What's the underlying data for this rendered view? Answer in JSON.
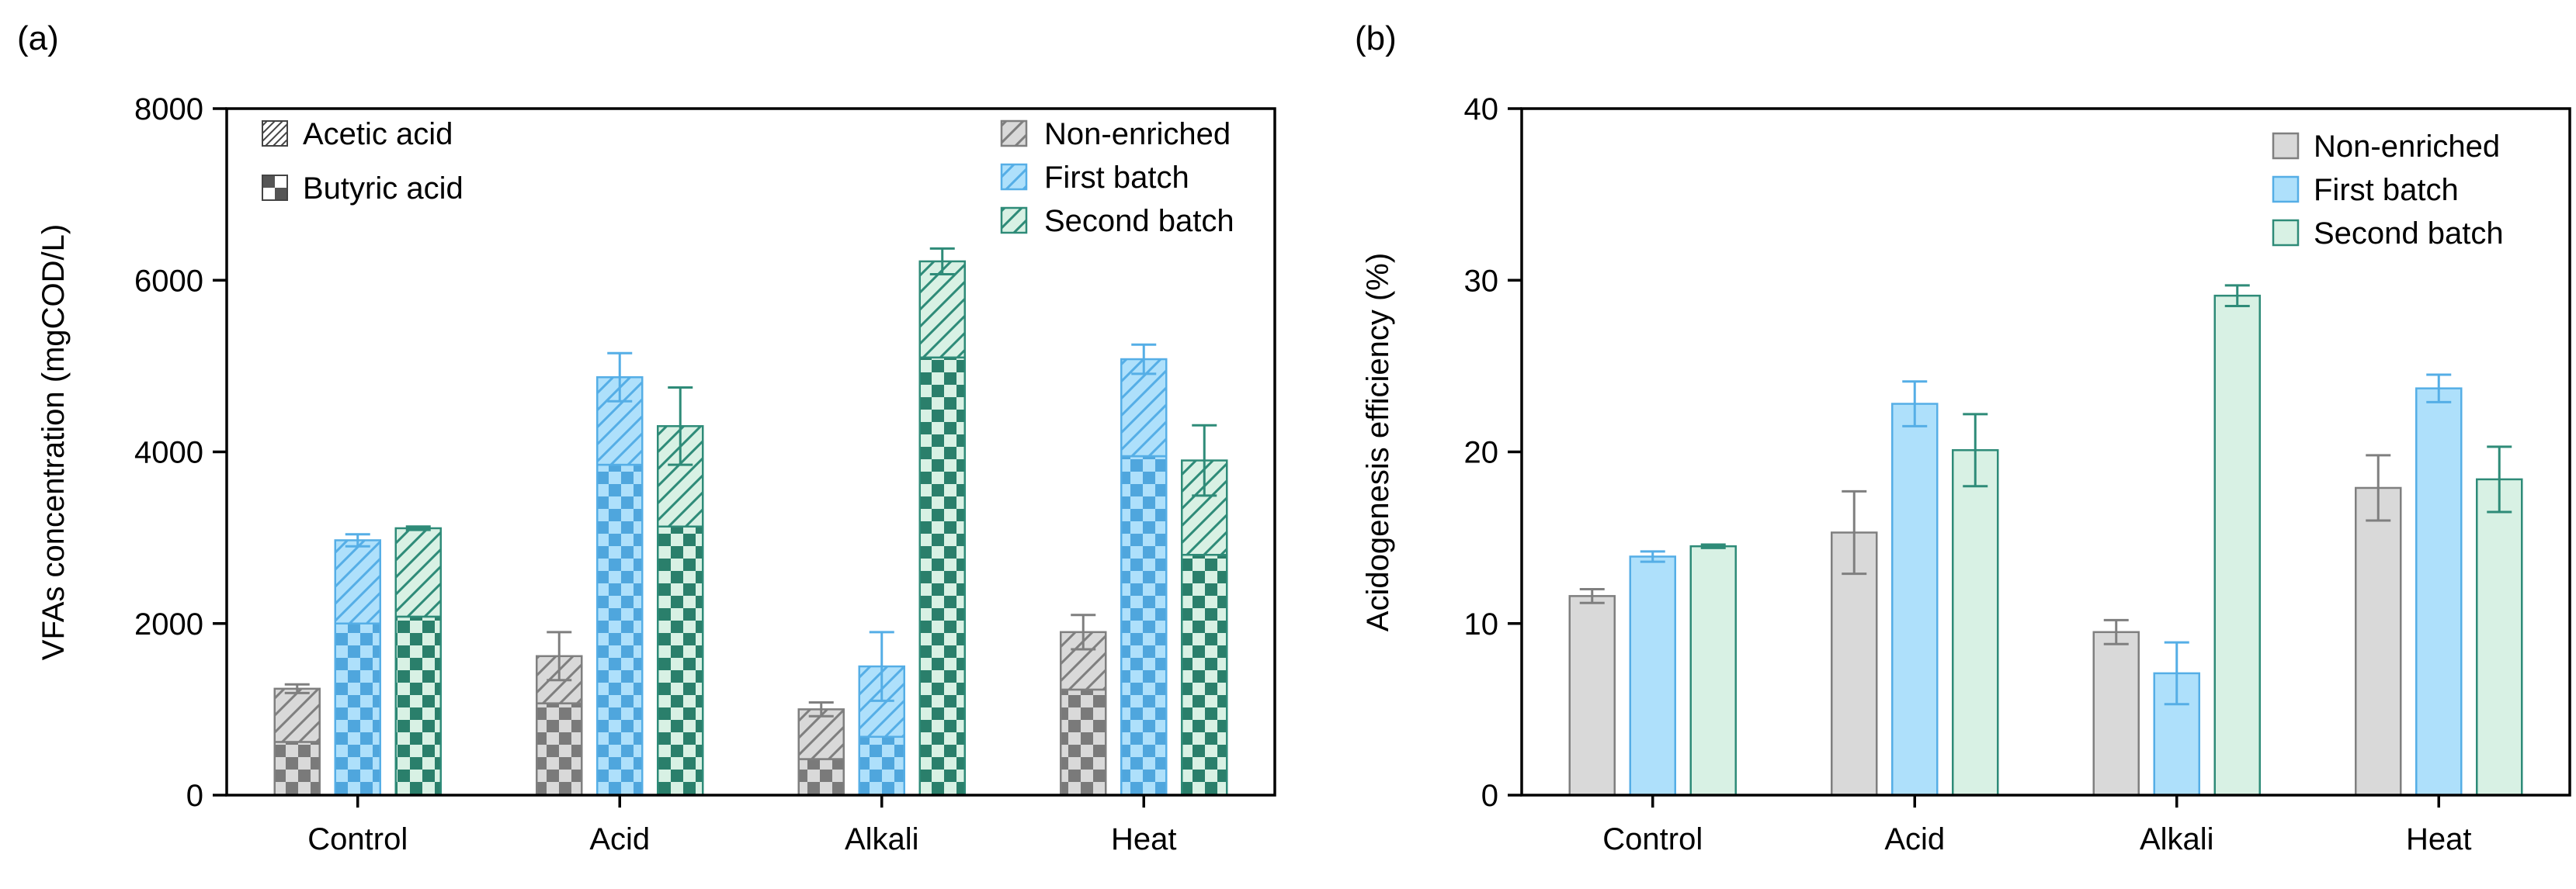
{
  "colors": {
    "non_enriched_fill": "#d9d9d9",
    "non_enriched_stroke": "#7f7f7f",
    "non_enriched_dark": "#7a7a7a",
    "first_batch_fill": "#aee0fb",
    "first_batch_stroke": "#55aee6",
    "first_batch_dark": "#4fa6dd",
    "second_batch_fill": "#d8f1e4",
    "second_batch_stroke": "#2e8b78",
    "second_batch_dark": "#2a7f6b",
    "butyric_light": "#dcdcdc"
  },
  "chart_data": [
    {
      "panel_label": "(a)",
      "type": "bar",
      "stacked": true,
      "title": "",
      "xlabel": "",
      "ylabel": "VFAs concentration (mgCOD/L)",
      "ylim": [
        0,
        8000
      ],
      "yticks": [
        "0",
        "2000",
        "4000",
        "6000",
        "8000"
      ],
      "categories": [
        "Control",
        "Acid",
        "Alkali",
        "Heat"
      ],
      "component_legend": [
        "Acetic acid",
        "Butyric acid"
      ],
      "legend_position": "top-right",
      "series": [
        {
          "name": "Non-enriched",
          "butyric": [
            620,
            1070,
            420,
            1230
          ],
          "acetic": [
            620,
            550,
            580,
            670
          ],
          "totals": [
            1240,
            1620,
            1000,
            1900
          ],
          "errors": [
            50,
            280,
            80,
            200
          ]
        },
        {
          "name": "First batch",
          "butyric": [
            2000,
            3850,
            680,
            3950
          ],
          "acetic": [
            970,
            1020,
            820,
            1130
          ],
          "totals": [
            2970,
            4870,
            1500,
            5080
          ],
          "errors": [
            70,
            280,
            400,
            170
          ]
        },
        {
          "name": "Second batch",
          "butyric": [
            2080,
            3130,
            5100,
            2800
          ],
          "acetic": [
            1030,
            1170,
            1120,
            1100
          ],
          "totals": [
            3110,
            4300,
            6220,
            3900
          ],
          "errors": [
            20,
            450,
            150,
            410
          ]
        }
      ]
    },
    {
      "panel_label": "(b)",
      "type": "bar",
      "title": "",
      "xlabel": "",
      "ylabel": "Acidogenesis efficiency (%)",
      "ylim": [
        0,
        40
      ],
      "yticks": [
        "0",
        "10",
        "20",
        "30",
        "40"
      ],
      "categories": [
        "Control",
        "Acid",
        "Alkali",
        "Heat"
      ],
      "legend_position": "top-right",
      "series": [
        {
          "name": "Non-enriched",
          "values": [
            11.6,
            15.3,
            9.5,
            17.9
          ],
          "errors": [
            0.4,
            2.4,
            0.7,
            1.9
          ]
        },
        {
          "name": "First batch",
          "values": [
            13.9,
            22.8,
            7.1,
            23.7
          ],
          "errors": [
            0.3,
            1.3,
            1.8,
            0.8
          ]
        },
        {
          "name": "Second batch",
          "values": [
            14.5,
            20.1,
            29.1,
            18.4
          ],
          "errors": [
            0.1,
            2.1,
            0.6,
            1.9
          ]
        }
      ]
    }
  ]
}
